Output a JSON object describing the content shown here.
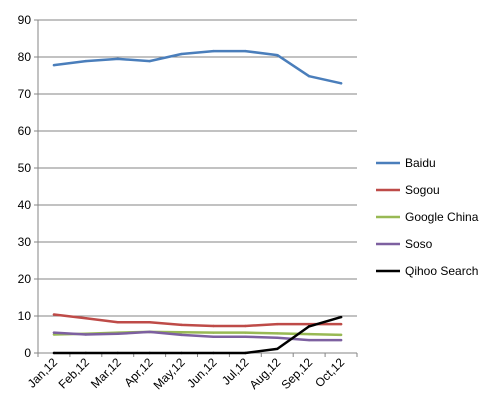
{
  "chart_data": {
    "type": "line",
    "categories": [
      "Jan,12",
      "Feb,12",
      "Mar,12",
      "Apr,12",
      "May,12",
      "Jun,12",
      "Jul,12",
      "Aug,12",
      "Sep,12",
      "Oct,12"
    ],
    "ylim": [
      0,
      90
    ],
    "yticks": [
      0,
      10,
      20,
      30,
      40,
      50,
      60,
      70,
      80,
      90
    ],
    "grid": "horizontal",
    "legend_position": "right",
    "series": [
      {
        "name": "Baidu",
        "color": "#4a7ebb",
        "values": [
          77.8,
          78.9,
          79.5,
          78.9,
          80.8,
          81.6,
          81.6,
          80.5,
          74.8,
          72.9
        ]
      },
      {
        "name": "Sogou",
        "color": "#be4b48",
        "values": [
          10.4,
          9.4,
          8.3,
          8.3,
          7.6,
          7.3,
          7.3,
          7.8,
          7.8,
          7.8
        ]
      },
      {
        "name": "Google China",
        "color": "#98b954",
        "values": [
          5.0,
          5.2,
          5.5,
          5.7,
          5.6,
          5.5,
          5.5,
          5.3,
          5.1,
          4.9
        ]
      },
      {
        "name": "Soso",
        "color": "#7d60a0",
        "values": [
          5.5,
          5.0,
          5.2,
          5.7,
          4.9,
          4.4,
          4.4,
          4.1,
          3.5,
          3.5
        ]
      },
      {
        "name": "Qihoo Search",
        "color": "#000000",
        "values": [
          0,
          0,
          0,
          0,
          0,
          0,
          0,
          1.1,
          7.2,
          9.7
        ]
      }
    ]
  }
}
